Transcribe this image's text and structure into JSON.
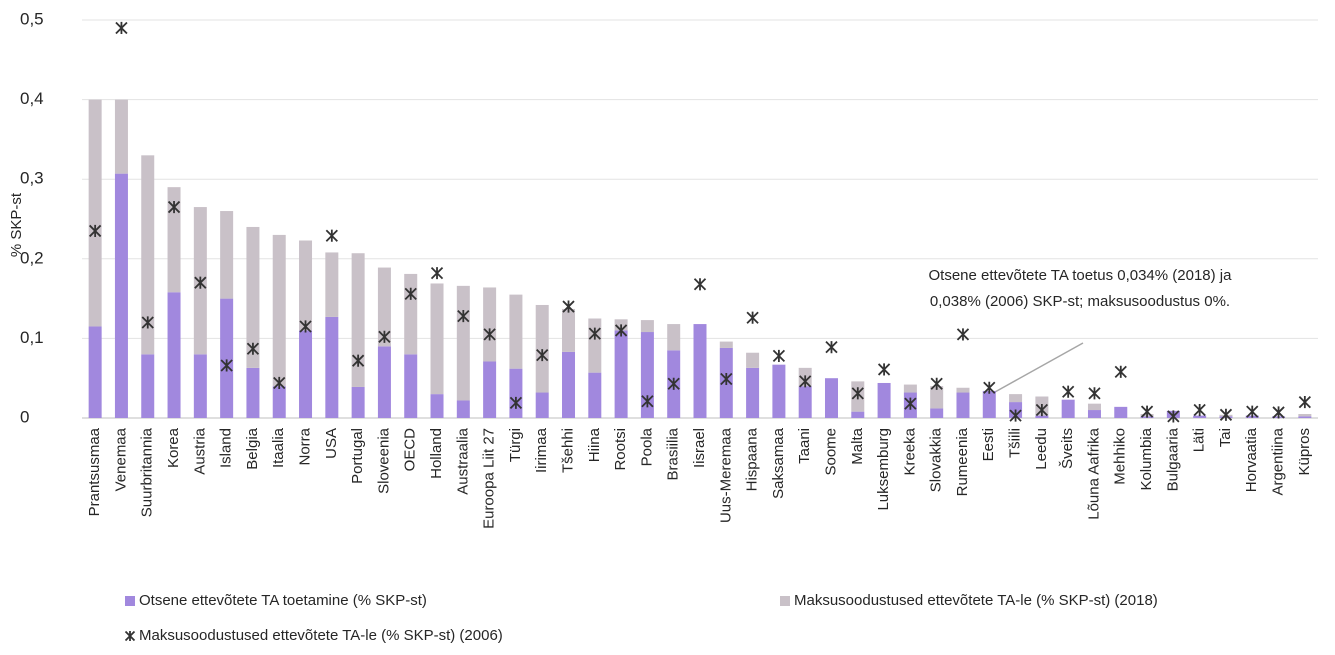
{
  "chart_data": {
    "type": "bar",
    "y_label": "% SKP-st",
    "categories": [
      "Prantsusmaa",
      "Venemaa",
      "Suurbritannia",
      "Korea",
      "Austria",
      "Island",
      "Belgia",
      "Itaalia",
      "Norra",
      "USA",
      "Portugal",
      "Sloveenia",
      "OECD",
      "Holland",
      "Austraalia",
      "Euroopa Liit 27",
      "Türgi",
      "Iirimaa",
      "Tšehhi",
      "Hiina",
      "Rootsi",
      "Poola",
      "Brasiilia",
      "Iisrael",
      "Uus-Meremaa",
      "Hispaana",
      "Saksamaa",
      "Taani",
      "Soome",
      "Malta",
      "Luksemburg",
      "Kreeka",
      "Slovakkia",
      "Rumeenia",
      "Eesti",
      "Tšiili",
      "Leedu",
      "Šveits",
      "Lõuna Aafrika",
      "Mehhiko",
      "Kolumbia",
      "Bulgaaria",
      "Läti",
      "Tai",
      "Horvaatia",
      "Argentiina",
      "Küpros"
    ],
    "series": [
      {
        "name": "Otsene ettevõtete TA toetamine (% SKP-st)",
        "color": "#a188de",
        "kind": "bar",
        "values": [
          0.115,
          0.307,
          0.08,
          0.158,
          0.08,
          0.15,
          0.063,
          0.04,
          0.11,
          0.127,
          0.039,
          0.09,
          0.08,
          0.03,
          0.022,
          0.071,
          0.062,
          0.032,
          0.083,
          0.057,
          0.11,
          0.108,
          0.085,
          0.118,
          0.088,
          0.063,
          0.067,
          0.04,
          0.05,
          0.008,
          0.044,
          0.032,
          0.012,
          0.032,
          0.034,
          0.02,
          0.003,
          0.023,
          0.01,
          0.014,
          0.002,
          0.009,
          0.003,
          0.002,
          0.003,
          0.002,
          0.002
        ]
      },
      {
        "name": "Maksusoodustused ettevõtete TA-le (% SKP-st) (2018)",
        "color": "#c9c1c8",
        "kind": "bar",
        "values": [
          0.285,
          0.093,
          0.25,
          0.132,
          0.185,
          0.11,
          0.177,
          0.19,
          0.113,
          0.081,
          0.168,
          0.099,
          0.101,
          0.139,
          0.144,
          0.093,
          0.093,
          0.11,
          0.054,
          0.068,
          0.014,
          0.015,
          0.033,
          0,
          0.008,
          0.019,
          0,
          0.023,
          0,
          0.038,
          0,
          0.01,
          0.028,
          0.006,
          0,
          0.01,
          0.024,
          0,
          0.008,
          0,
          0.003,
          0,
          0,
          0.002,
          0,
          0,
          0.003
        ]
      },
      {
        "name": "Maksusoodustused ettevõtete TA-le (% SKP-st) (2006)",
        "color": "#333333",
        "kind": "marker",
        "values": [
          0.235,
          0.49,
          0.12,
          0.265,
          0.17,
          0.066,
          0.087,
          0.044,
          0.115,
          0.229,
          0.072,
          0.102,
          0.156,
          0.182,
          0.128,
          0.105,
          0.019,
          0.079,
          0.14,
          0.106,
          0.11,
          0.021,
          0.043,
          0.168,
          0.049,
          0.126,
          0.078,
          0.046,
          0.089,
          0.031,
          0.061,
          0.018,
          0.043,
          0.105,
          0.038,
          0.003,
          0.01,
          0.033,
          0.031,
          0.058,
          0.008,
          0.002,
          0.01,
          0.004,
          0.008,
          0.007,
          0.02
        ]
      }
    ],
    "ylim": [
      0,
      0.5
    ],
    "yticks": [
      0,
      {
        "value": 0.1,
        "label": "0,1"
      },
      {
        "value": 0.2,
        "label": "0,2"
      },
      {
        "value": 0.3,
        "label": "0,3"
      },
      {
        "value": 0.4,
        "label": "0,4"
      },
      {
        "value": 0.5,
        "label": "0,5"
      }
    ],
    "grid": true,
    "annotation": [
      "Otsene ettevõtete TA toetus 0,034% (2018) ja",
      "0,038% (2006) SKP-st; maksusoodustus 0%."
    ]
  }
}
